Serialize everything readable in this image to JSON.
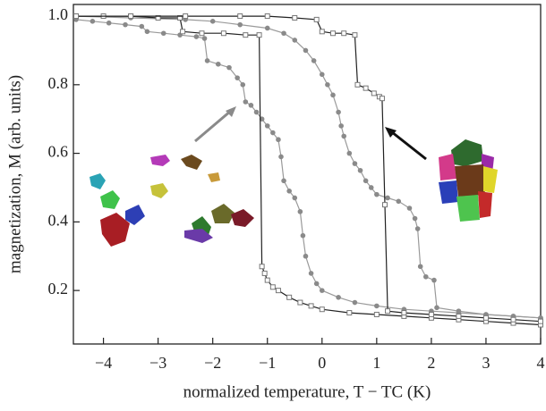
{
  "chart_data": {
    "type": "line",
    "xlabel": "normalized temperature, T − TC (K)",
    "ylabel": "magnetization, M (arb. units)",
    "xlim": [
      -4.55,
      4
    ],
    "ylim": [
      0.044,
      1.034
    ],
    "xticks": [
      {
        "value": -4,
        "label": "−4"
      },
      {
        "value": -3,
        "label": "−3"
      },
      {
        "value": -2,
        "label": "−2"
      },
      {
        "value": -1,
        "label": "−1"
      },
      0,
      1,
      2,
      3,
      4
    ],
    "yticks": [
      0.2,
      0.4,
      0.6,
      0.8,
      {
        "value": 1,
        "label": "1.0"
      }
    ],
    "series": [
      {
        "color": "#8a8a8a",
        "marker": "circle",
        "line_color": "#9a9a9a",
        "x": [
          -4.5,
          -4.2,
          -3.9,
          -3.6,
          -3.3,
          -3.2,
          -2.9,
          -2.6,
          -2.3,
          -2.15,
          -2.1,
          -1.9,
          -1.7,
          -1.55,
          -1.45,
          -1.4,
          -1.3,
          -1.2,
          -1.1,
          -1.0,
          -0.9,
          -0.8,
          -0.75,
          -0.7,
          -0.6,
          -0.5,
          -0.4,
          -0.35,
          -0.3,
          -0.2,
          -0.1,
          0,
          0.3,
          0.6,
          1.0,
          1.5,
          2.0,
          2.5,
          3.0,
          3.5,
          4.0
        ],
        "values": [
          0.99,
          0.985,
          0.98,
          0.975,
          0.97,
          0.955,
          0.95,
          0.945,
          0.94,
          0.935,
          0.87,
          0.86,
          0.85,
          0.82,
          0.8,
          0.75,
          0.74,
          0.72,
          0.7,
          0.68,
          0.66,
          0.64,
          0.59,
          0.52,
          0.49,
          0.47,
          0.43,
          0.36,
          0.3,
          0.25,
          0.22,
          0.2,
          0.18,
          0.165,
          0.155,
          0.145,
          0.14,
          0.135,
          0.13,
          0.125,
          0.12
        ]
      },
      {
        "color": "#8a8a8a",
        "marker": "circle",
        "line_color": "#9a9a9a",
        "x": [
          -4.5,
          -3.5,
          -2.5,
          -2.0,
          -1.5,
          -1.0,
          -0.7,
          -0.5,
          -0.3,
          -0.15,
          0,
          0.1,
          0.2,
          0.3,
          0.35,
          0.4,
          0.5,
          0.6,
          0.7,
          0.8,
          0.9,
          1.0,
          1.2,
          1.4,
          1.6,
          1.7,
          1.75,
          1.8,
          1.9,
          2.05,
          2.1,
          2.5,
          3.0,
          3.5,
          4.0
        ],
        "values": [
          1.0,
          0.995,
          0.99,
          0.985,
          0.975,
          0.965,
          0.95,
          0.93,
          0.9,
          0.87,
          0.83,
          0.8,
          0.77,
          0.72,
          0.68,
          0.65,
          0.6,
          0.57,
          0.55,
          0.52,
          0.5,
          0.48,
          0.47,
          0.46,
          0.44,
          0.41,
          0.38,
          0.27,
          0.24,
          0.23,
          0.15,
          0.14,
          0.13,
          0.125,
          0.12
        ]
      },
      {
        "color": "#777777",
        "marker": "square",
        "line_color": "#222222",
        "x": [
          -4.5,
          -4.0,
          -3.5,
          -3.0,
          -2.6,
          -2.55,
          -2.2,
          -1.8,
          -1.4,
          -1.15,
          -1.1,
          -1.05,
          -1.0,
          -0.9,
          -0.8,
          -0.6,
          -0.4,
          -0.2,
          0,
          0.5,
          1.0,
          1.5,
          2.0,
          2.5,
          3.0,
          3.5,
          4.0
        ],
        "values": [
          1.0,
          1.0,
          1.0,
          0.995,
          0.995,
          0.955,
          0.95,
          0.95,
          0.945,
          0.945,
          0.27,
          0.25,
          0.23,
          0.21,
          0.2,
          0.18,
          0.165,
          0.155,
          0.145,
          0.135,
          0.13,
          0.125,
          0.12,
          0.115,
          0.11,
          0.105,
          0.1
        ]
      },
      {
        "color": "#777777",
        "marker": "square",
        "line_color": "#222222",
        "x": [
          -4.5,
          -3.5,
          -2.5,
          -1.5,
          -1.0,
          -0.5,
          -0.1,
          0.0,
          0.2,
          0.4,
          0.6,
          0.65,
          0.8,
          0.95,
          1.05,
          1.1,
          1.15,
          1.2,
          1.5,
          2.0,
          2.5,
          3.0,
          3.5,
          4.0
        ],
        "values": [
          1.0,
          1.0,
          1.0,
          1.0,
          1.0,
          0.995,
          0.99,
          0.955,
          0.95,
          0.95,
          0.945,
          0.8,
          0.79,
          0.775,
          0.765,
          0.76,
          0.45,
          0.14,
          0.135,
          0.13,
          0.125,
          0.12,
          0.115,
          0.11
        ]
      }
    ]
  }
}
